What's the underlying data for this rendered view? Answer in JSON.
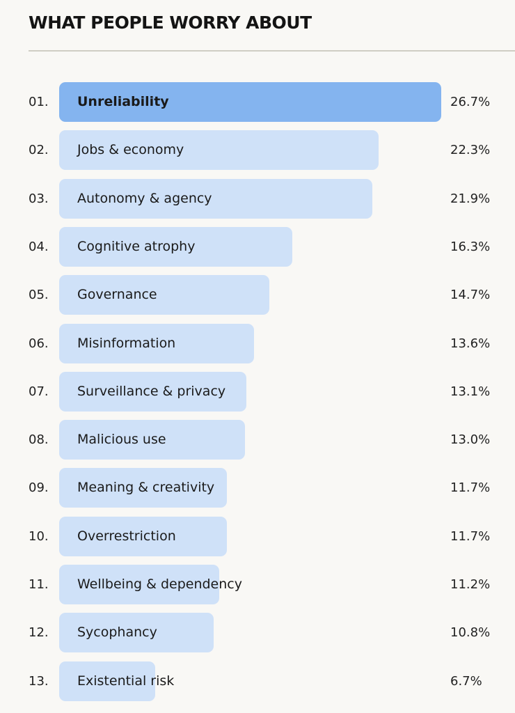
{
  "chart_data": {
    "type": "bar",
    "orientation": "horizontal",
    "title": "WHAT PEOPLE WORRY ABOUT",
    "xlabel": "",
    "ylabel": "",
    "xlim": [
      0,
      26.7
    ],
    "grid": false,
    "highlight_color": "#84b4ef",
    "bar_color": "#cfe1f8",
    "ranks": [
      "01.",
      "02.",
      "03.",
      "04.",
      "05.",
      "06.",
      "07.",
      "08.",
      "09.",
      "10.",
      "11.",
      "12.",
      "13."
    ],
    "categories": [
      "Unreliability",
      "Jobs & economy",
      "Autonomy & agency",
      "Cognitive atrophy",
      "Governance",
      "Misinformation",
      "Surveillance & privacy",
      "Malicious use",
      "Meaning & creativity",
      "Overrestriction",
      "Wellbeing & dependency",
      "Sycophancy",
      "Existential risk"
    ],
    "values": [
      26.7,
      22.3,
      21.9,
      16.3,
      14.7,
      13.6,
      13.1,
      13.0,
      11.7,
      11.7,
      11.2,
      10.8,
      6.7
    ],
    "value_labels": [
      "26.7%",
      "22.3%",
      "21.9%",
      "16.3%",
      "14.7%",
      "13.6%",
      "13.1%",
      "13.0%",
      "11.7%",
      "11.7%",
      "11.2%",
      "10.8%",
      "6.7%"
    ]
  }
}
